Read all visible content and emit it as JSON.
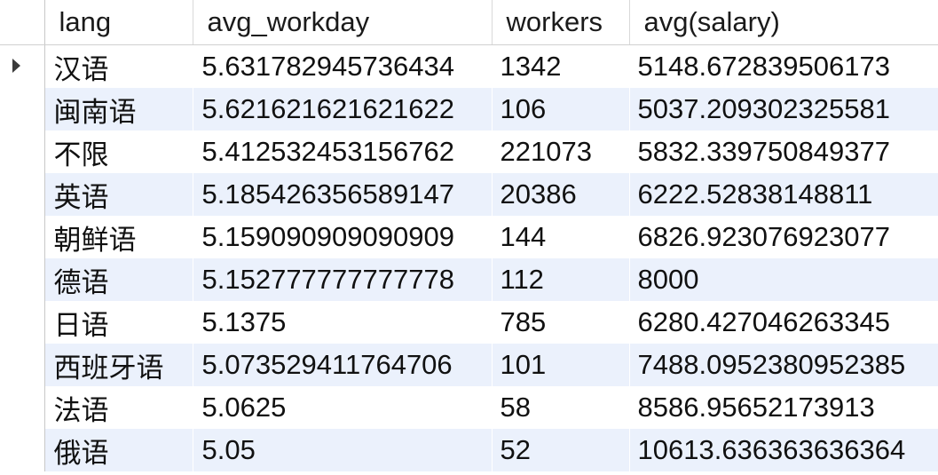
{
  "columns": [
    "lang",
    "avg_workday",
    "workers",
    "avg(salary)"
  ],
  "current_row_indicator": "triangle-right-icon",
  "rows": [
    {
      "lang": "汉语",
      "avg_workday": "5.631782945736434",
      "workers": "1342",
      "avg_salary": "5148.672839506173"
    },
    {
      "lang": "闽南语",
      "avg_workday": "5.621621621621622",
      "workers": "106",
      "avg_salary": "5037.209302325581"
    },
    {
      "lang": "不限",
      "avg_workday": "5.412532453156762",
      "workers": "221073",
      "avg_salary": "5832.339750849377"
    },
    {
      "lang": "英语",
      "avg_workday": "5.185426356589147",
      "workers": "20386",
      "avg_salary": "6222.52838148811"
    },
    {
      "lang": "朝鲜语",
      "avg_workday": "5.159090909090909",
      "workers": "144",
      "avg_salary": "6826.923076923077"
    },
    {
      "lang": "德语",
      "avg_workday": "5.152777777777778",
      "workers": "112",
      "avg_salary": "8000"
    },
    {
      "lang": "日语",
      "avg_workday": "5.1375",
      "workers": "785",
      "avg_salary": "6280.427046263345"
    },
    {
      "lang": "西班牙语",
      "avg_workday": "5.073529411764706",
      "workers": "101",
      "avg_salary": "7488.0952380952385"
    },
    {
      "lang": "法语",
      "avg_workday": "5.0625",
      "workers": "58",
      "avg_salary": "8586.95652173913"
    },
    {
      "lang": "俄语",
      "avg_workday": "5.05",
      "workers": "52",
      "avg_salary": "10613.636363636364"
    }
  ],
  "colors": {
    "row_alt_background": "#ebf1fc",
    "row_background": "#ffffff",
    "gridline": "#c8c8c8"
  }
}
